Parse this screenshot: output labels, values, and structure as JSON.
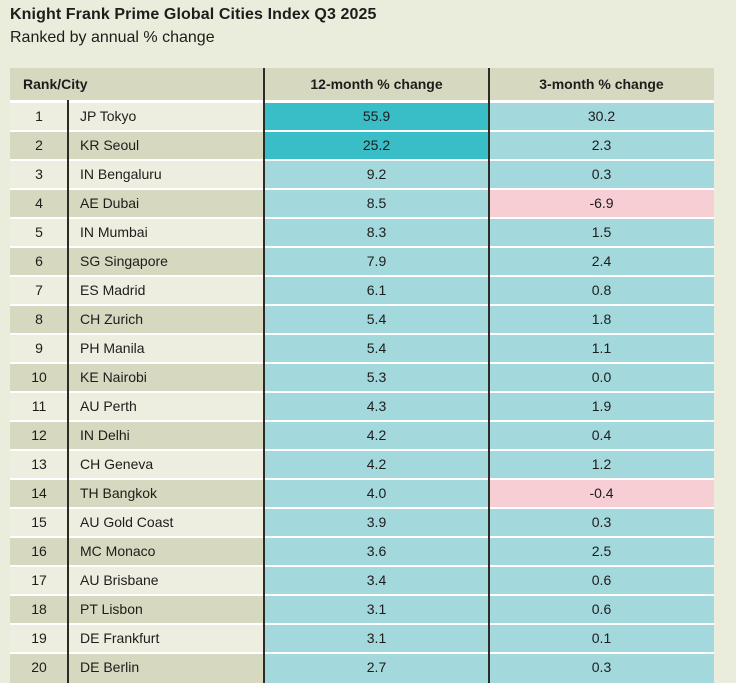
{
  "title": "Knight Frank Prime Global Cities Index Q3 2025",
  "subtitle": "Ranked by annual % change",
  "colors": {
    "page_background": "#eaecdc",
    "row_cream": "#edeedf",
    "row_sage": "#d6d8c0",
    "header_background": "#d6d8c0",
    "value_cyan": "#a3d8dd",
    "highlight_teal": "#39bec7",
    "negative_pink": "#f6ced3",
    "divider_dark": "#2c2c27",
    "text": "#1d1d1b"
  },
  "chart_data": {
    "type": "table",
    "title": "Knight Frank Prime Global Cities Index Q3 2025",
    "subtitle": "Ranked by annual % change",
    "columns": [
      "Rank/City",
      "12-month % change",
      "3-month % change"
    ],
    "rows": [
      {
        "rank": "1",
        "city": "JP Tokyo",
        "change_12m": "55.9",
        "change_3m": "30.2",
        "highlight_12m": true,
        "negative_3m": false
      },
      {
        "rank": "2",
        "city": "KR Seoul",
        "change_12m": "25.2",
        "change_3m": "2.3",
        "highlight_12m": true,
        "negative_3m": false
      },
      {
        "rank": "3",
        "city": "IN Bengaluru",
        "change_12m": "9.2",
        "change_3m": "0.3",
        "highlight_12m": false,
        "negative_3m": false
      },
      {
        "rank": "4",
        "city": "AE Dubai",
        "change_12m": "8.5",
        "change_3m": "-6.9",
        "highlight_12m": false,
        "negative_3m": true
      },
      {
        "rank": "5",
        "city": "IN Mumbai",
        "change_12m": "8.3",
        "change_3m": "1.5",
        "highlight_12m": false,
        "negative_3m": false
      },
      {
        "rank": "6",
        "city": "SG Singapore",
        "change_12m": "7.9",
        "change_3m": "2.4",
        "highlight_12m": false,
        "negative_3m": false
      },
      {
        "rank": "7",
        "city": "ES Madrid",
        "change_12m": "6.1",
        "change_3m": "0.8",
        "highlight_12m": false,
        "negative_3m": false
      },
      {
        "rank": "8",
        "city": "CH Zurich",
        "change_12m": "5.4",
        "change_3m": "1.8",
        "highlight_12m": false,
        "negative_3m": false
      },
      {
        "rank": "9",
        "city": "PH Manila",
        "change_12m": "5.4",
        "change_3m": "1.1",
        "highlight_12m": false,
        "negative_3m": false
      },
      {
        "rank": "10",
        "city": "KE Nairobi",
        "change_12m": "5.3",
        "change_3m": "0.0",
        "highlight_12m": false,
        "negative_3m": false
      },
      {
        "rank": "11",
        "city": "AU Perth",
        "change_12m": "4.3",
        "change_3m": "1.9",
        "highlight_12m": false,
        "negative_3m": false
      },
      {
        "rank": "12",
        "city": "IN Delhi",
        "change_12m": "4.2",
        "change_3m": "0.4",
        "highlight_12m": false,
        "negative_3m": false
      },
      {
        "rank": "13",
        "city": "CH Geneva",
        "change_12m": "4.2",
        "change_3m": "1.2",
        "highlight_12m": false,
        "negative_3m": false
      },
      {
        "rank": "14",
        "city": "TH Bangkok",
        "change_12m": "4.0",
        "change_3m": "-0.4",
        "highlight_12m": false,
        "negative_3m": true
      },
      {
        "rank": "15",
        "city": "AU Gold Coast",
        "change_12m": "3.9",
        "change_3m": "0.3",
        "highlight_12m": false,
        "negative_3m": false
      },
      {
        "rank": "16",
        "city": "MC Monaco",
        "change_12m": "3.6",
        "change_3m": "2.5",
        "highlight_12m": false,
        "negative_3m": false
      },
      {
        "rank": "17",
        "city": "AU Brisbane",
        "change_12m": "3.4",
        "change_3m": "0.6",
        "highlight_12m": false,
        "negative_3m": false
      },
      {
        "rank": "18",
        "city": "PT Lisbon",
        "change_12m": "3.1",
        "change_3m": "0.6",
        "highlight_12m": false,
        "negative_3m": false
      },
      {
        "rank": "19",
        "city": "DE Frankfurt",
        "change_12m": "3.1",
        "change_3m": "0.1",
        "highlight_12m": false,
        "negative_3m": false
      },
      {
        "rank": "20",
        "city": "DE Berlin",
        "change_12m": "2.7",
        "change_3m": "0.3",
        "highlight_12m": false,
        "negative_3m": false
      }
    ]
  }
}
